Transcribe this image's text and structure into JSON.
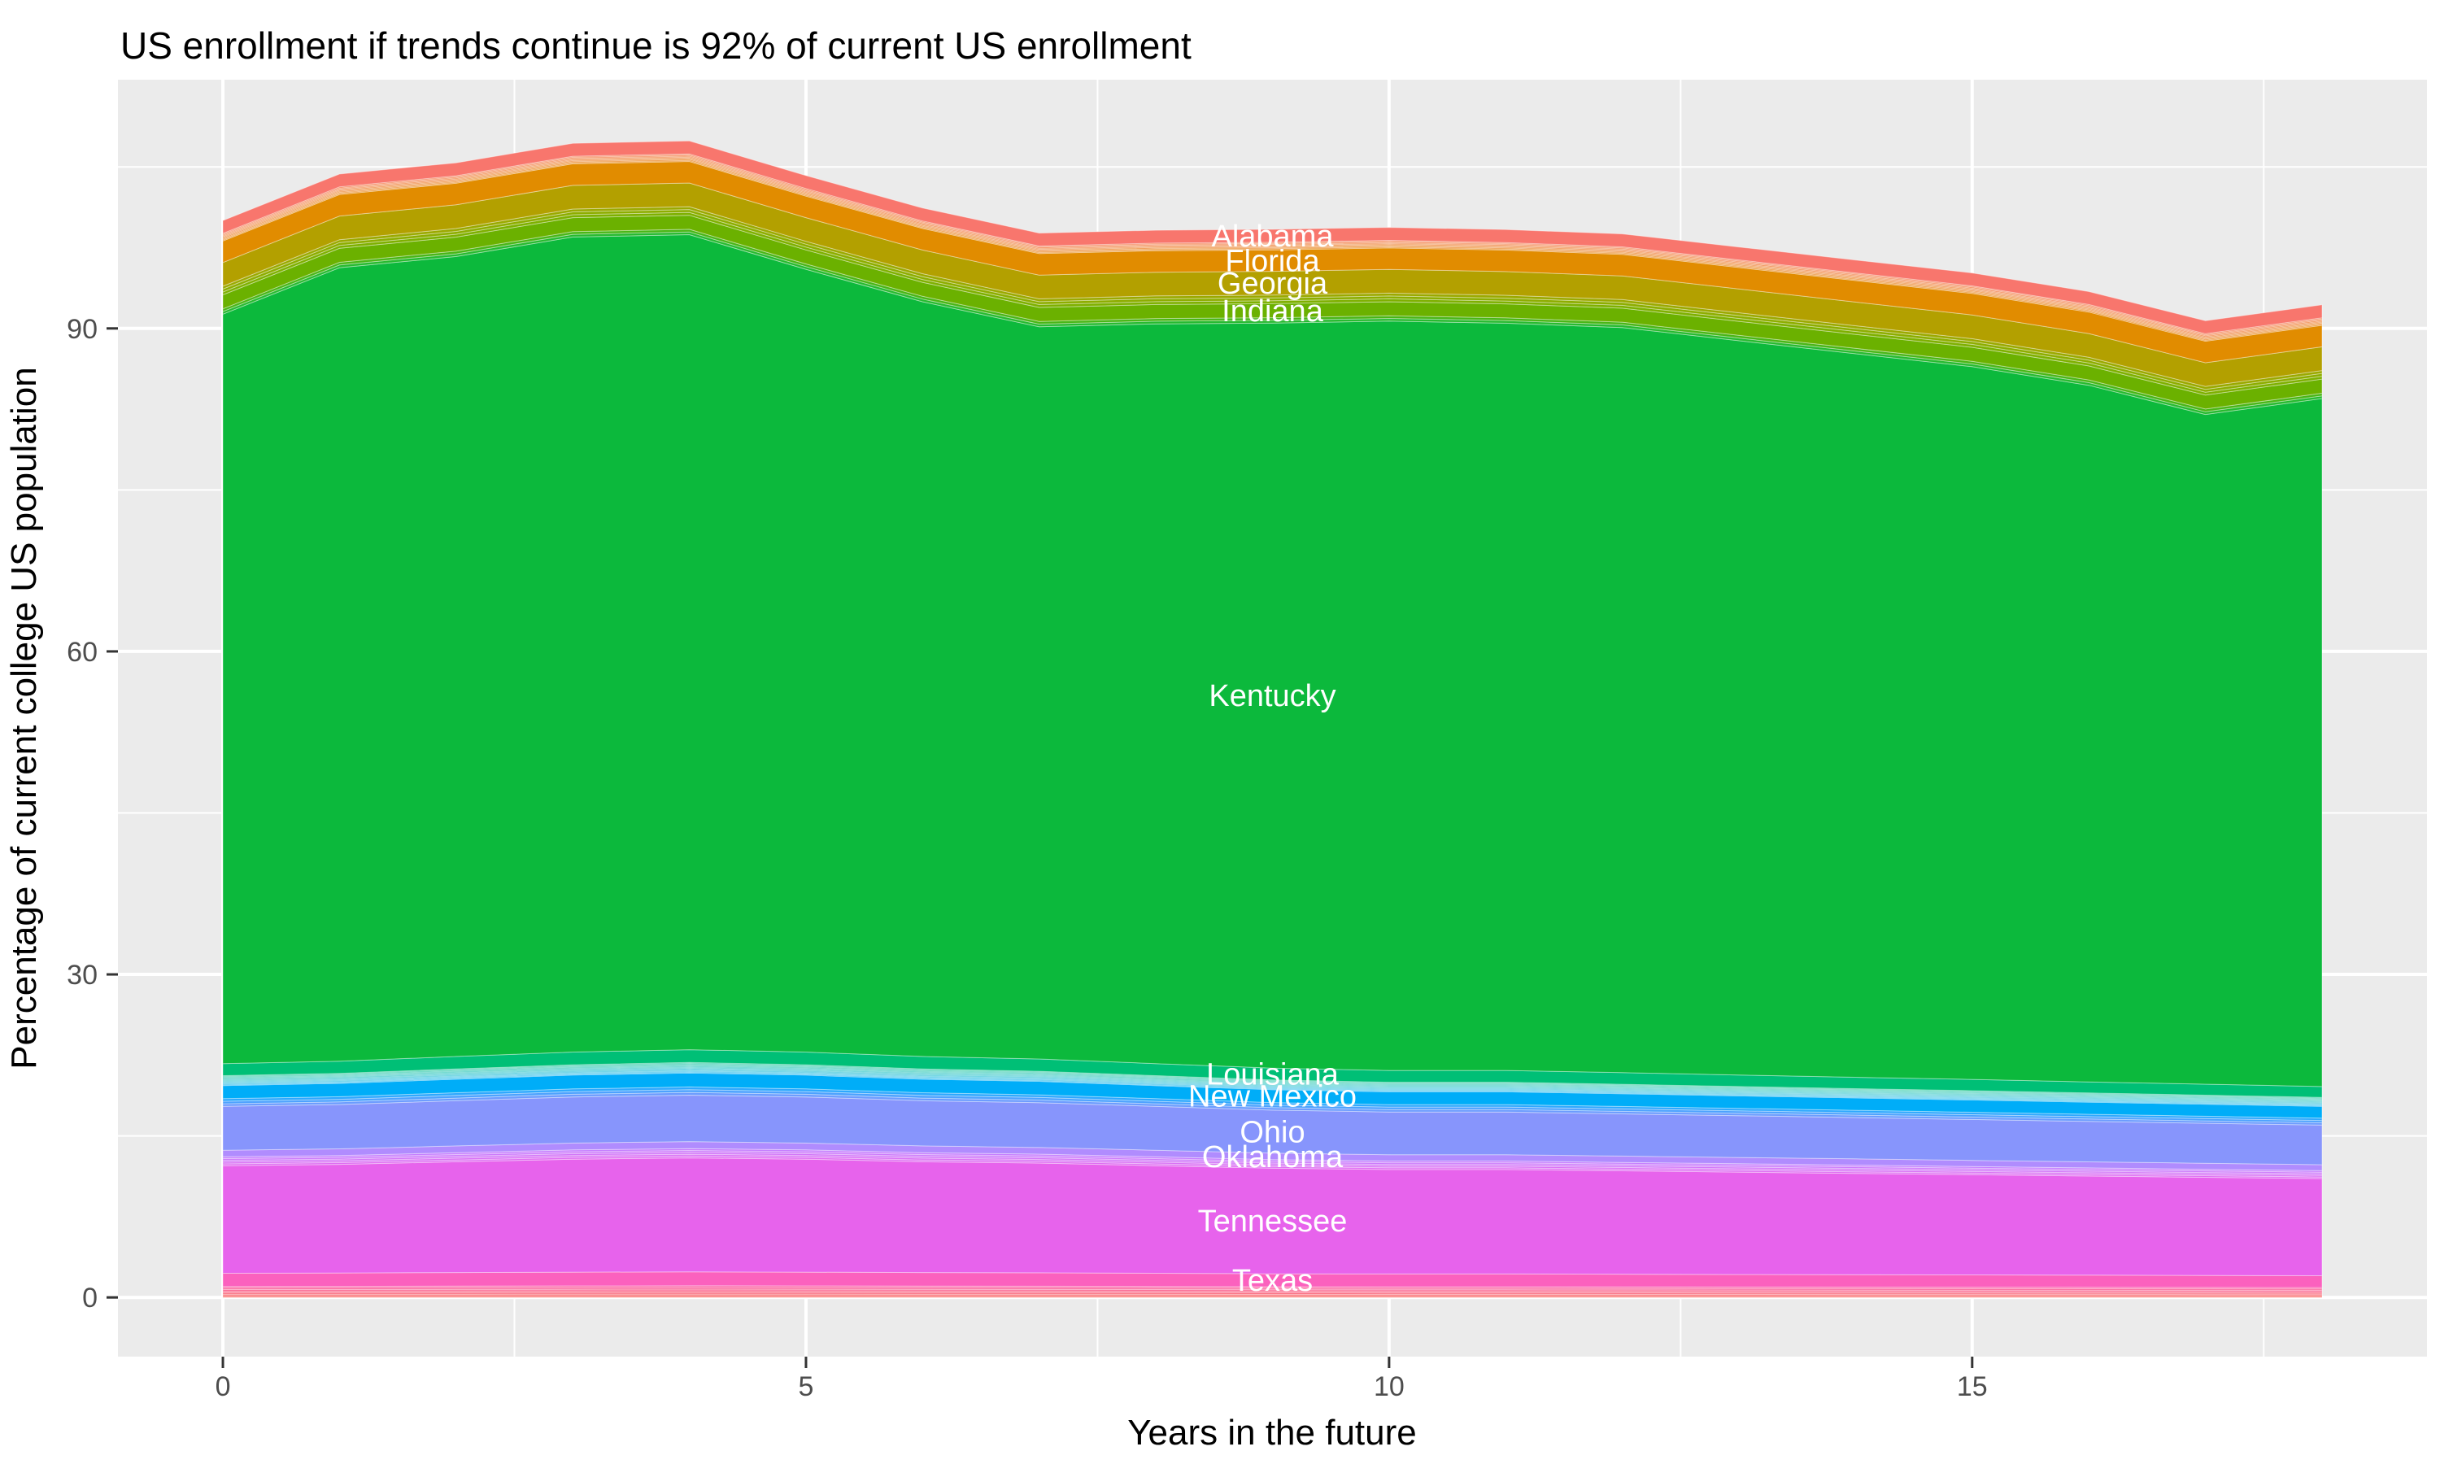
{
  "title": "US enrollment if trends continue is 92% of current US enrollment",
  "axes": {
    "x": {
      "title": "Years in the future",
      "tick_labels": [
        "0",
        "5",
        "10",
        "15"
      ],
      "tick_values": [
        0,
        5,
        10,
        15
      ],
      "minor_values": [
        2.5,
        7.5,
        12.5,
        17.5
      ]
    },
    "y": {
      "title": "Percentage of current college US population",
      "tick_labels": [
        "0",
        "30",
        "60",
        "90"
      ],
      "tick_values": [
        0,
        30,
        60,
        90
      ],
      "minor_values": [
        15,
        45,
        75,
        105
      ]
    }
  },
  "style": {
    "background": "#FFFFFF",
    "panel_background": "#EBEBEB",
    "grid_color": "#FFFFFF",
    "tick_mark_color": "#333333",
    "tick_label_color": "#4D4D4D",
    "area_label_color": "#FFFFFF",
    "band_separator": "rgba(255,255,255,0.40)"
  },
  "chart_data": {
    "type": "area",
    "stacked": true,
    "stack_order": "top-to-bottom",
    "grid": true,
    "legend": "none",
    "label_x": 9,
    "x": [
      0,
      1,
      2,
      3,
      4,
      5,
      6,
      7,
      8,
      9,
      10,
      11,
      12,
      13,
      14,
      15,
      16,
      17,
      18
    ],
    "x_range": [
      -0.9,
      18.9
    ],
    "y_range": [
      -5.5,
      113.1
    ],
    "total_at_year_0": 100.0,
    "peak_total": 107.4,
    "total_at_year_18": 92.2,
    "series": [
      {
        "name": "Alabama",
        "show_label": true,
        "color": "#F8766D",
        "values": [
          1.2,
          1.2,
          1.2,
          1.2,
          1.2,
          1.2,
          1.2,
          1.2,
          1.2,
          1.2,
          1.2,
          1.2,
          1.2,
          1.2,
          1.2,
          1.2,
          1.2,
          1.2,
          1.2
        ]
      },
      {
        "name": "",
        "show_label": false,
        "stripes": 7,
        "color_start": "#F57D4E",
        "color_end": "#E9891C",
        "values": [
          0.7,
          0.7,
          0.7,
          0.7,
          0.7,
          0.7,
          0.7,
          0.7,
          0.7,
          0.7,
          0.7,
          0.7,
          0.7,
          0.7,
          0.7,
          0.7,
          0.7,
          0.7,
          0.7
        ]
      },
      {
        "name": "Florida",
        "show_label": true,
        "color": "#E18C00",
        "values": [
          2.0,
          2.0,
          2.0,
          2.0,
          2.0,
          2.0,
          2.0,
          2.0,
          2.0,
          2.0,
          2.0,
          2.0,
          2.0,
          2.0,
          2.0,
          2.0,
          2.0,
          2.0,
          2.0
        ]
      },
      {
        "name": "Georgia",
        "show_label": true,
        "color": "#B3A000",
        "values": [
          2.2,
          2.2,
          2.2,
          2.2,
          2.2,
          2.2,
          2.2,
          2.2,
          2.2,
          2.2,
          2.2,
          2.2,
          2.2,
          2.2,
          2.2,
          2.2,
          2.2,
          2.2,
          2.2
        ]
      },
      {
        "name": "",
        "show_label": false,
        "stripes": 3,
        "color_start": "#9BA900",
        "color_end": "#7EB000",
        "values": [
          0.8,
          0.8,
          0.8,
          0.8,
          0.8,
          0.8,
          0.8,
          0.8,
          0.8,
          0.8,
          0.8,
          0.8,
          0.8,
          0.8,
          0.8,
          0.8,
          0.8,
          0.8,
          0.8
        ]
      },
      {
        "name": "Indiana",
        "show_label": true,
        "color": "#6BB100",
        "values": [
          1.3,
          1.3,
          1.3,
          1.3,
          1.3,
          1.3,
          1.3,
          1.3,
          1.3,
          1.3,
          1.3,
          1.3,
          1.3,
          1.3,
          1.3,
          1.3,
          1.3,
          1.3,
          1.3
        ]
      },
      {
        "name": "",
        "show_label": false,
        "stripes": 2,
        "color_start": "#49B617",
        "color_end": "#27BA30",
        "values": [
          0.5,
          0.5,
          0.5,
          0.5,
          0.5,
          0.5,
          0.5,
          0.5,
          0.5,
          0.5,
          0.5,
          0.5,
          0.5,
          0.5,
          0.5,
          0.5,
          0.5,
          0.5,
          0.5
        ]
      },
      {
        "name": "Kentucky",
        "show_label": true,
        "color": "#0CB93C",
        "values": [
          69.6,
          73.7,
          74.3,
          75.7,
          75.7,
          72.7,
          70.1,
          68.0,
          68.7,
          69.2,
          69.6,
          69.4,
          69.2,
          68.2,
          67.2,
          66.2,
          64.7,
          62.2,
          63.9
        ]
      },
      {
        "name": "Louisiana",
        "show_label": true,
        "color": "#00BF76",
        "values": [
          1.12,
          1.13,
          1.16,
          1.18,
          1.19,
          1.18,
          1.16,
          1.14,
          1.12,
          1.1,
          1.09,
          1.09,
          1.08,
          1.07,
          1.06,
          1.05,
          1.03,
          1.02,
          1.01
        ]
      },
      {
        "name": "",
        "show_label": false,
        "stripes": 12,
        "color_start": "#00C092",
        "color_end": "#00B0EE",
        "values": [
          0.92,
          0.93,
          0.95,
          0.96,
          0.97,
          0.96,
          0.95,
          0.94,
          0.92,
          0.9,
          0.89,
          0.89,
          0.88,
          0.87,
          0.86,
          0.86,
          0.85,
          0.84,
          0.83
        ]
      },
      {
        "name": "New Mexico",
        "show_label": true,
        "color": "#00ADF8",
        "values": [
          1.22,
          1.24,
          1.26,
          1.28,
          1.3,
          1.28,
          1.26,
          1.25,
          1.22,
          1.2,
          1.19,
          1.19,
          1.18,
          1.16,
          1.15,
          1.14,
          1.13,
          1.12,
          1.1
        ]
      },
      {
        "name": "",
        "show_label": false,
        "stripes": 3,
        "color_start": "#2EA8FE",
        "color_end": "#6C9CFE",
        "values": [
          0.71,
          0.72,
          0.74,
          0.75,
          0.76,
          0.75,
          0.74,
          0.73,
          0.71,
          0.7,
          0.69,
          0.69,
          0.69,
          0.68,
          0.67,
          0.67,
          0.66,
          0.65,
          0.64
        ]
      },
      {
        "name": "Ohio",
        "show_label": true,
        "color": "#8795FC",
        "values": [
          4.08,
          4.12,
          4.2,
          4.28,
          4.32,
          4.28,
          4.2,
          4.16,
          4.08,
          4.0,
          3.96,
          3.96,
          3.92,
          3.88,
          3.84,
          3.8,
          3.76,
          3.72,
          3.68
        ]
      },
      {
        "name": "Oklahoma",
        "show_label": true,
        "color": "#B08CFE",
        "values": [
          0.61,
          0.62,
          0.63,
          0.64,
          0.65,
          0.64,
          0.63,
          0.62,
          0.61,
          0.6,
          0.59,
          0.59,
          0.59,
          0.58,
          0.58,
          0.57,
          0.56,
          0.56,
          0.55
        ]
      },
      {
        "name": "",
        "show_label": false,
        "stripes": 5,
        "color_start": "#C57EFE",
        "color_end": "#DF6DF2",
        "values": [
          0.82,
          0.82,
          0.84,
          0.86,
          0.86,
          0.86,
          0.84,
          0.83,
          0.82,
          0.8,
          0.79,
          0.79,
          0.78,
          0.78,
          0.77,
          0.76,
          0.75,
          0.74,
          0.74
        ]
      },
      {
        "name": "Tennessee",
        "show_label": true,
        "color": "#E763EC",
        "values": [
          10.0,
          10.09,
          10.29,
          10.49,
          10.58,
          10.49,
          10.29,
          10.19,
          10.0,
          9.8,
          9.7,
          9.7,
          9.6,
          9.51,
          9.41,
          9.31,
          9.21,
          9.11,
          9.02
        ]
      },
      {
        "name": "Texas",
        "show_label": true,
        "color": "#FB61BE",
        "values": [
          1.22,
          1.24,
          1.26,
          1.28,
          1.3,
          1.28,
          1.26,
          1.25,
          1.22,
          1.2,
          1.19,
          1.19,
          1.18,
          1.16,
          1.15,
          1.14,
          1.13,
          1.12,
          1.1
        ]
      },
      {
        "name": "",
        "show_label": false,
        "stripes": 7,
        "color_start": "#FC62A4",
        "color_end": "#F9706B",
        "values": [
          1.02,
          1.03,
          1.05,
          1.07,
          1.08,
          1.07,
          1.05,
          1.04,
          1.02,
          1.0,
          0.99,
          0.99,
          0.98,
          0.97,
          0.96,
          0.95,
          0.94,
          0.93,
          0.92
        ]
      }
    ]
  }
}
